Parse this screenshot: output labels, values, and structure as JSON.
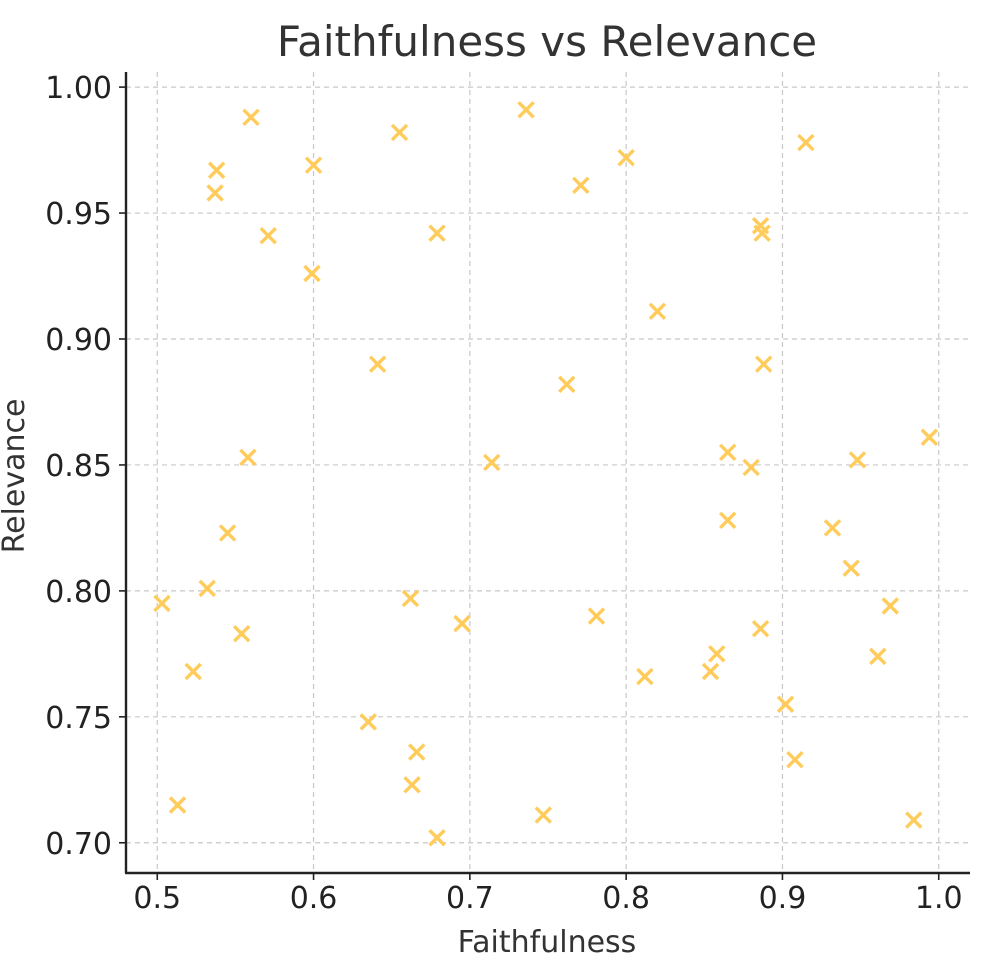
{
  "chart_data": {
    "type": "scatter",
    "title": "Faithfulness vs Relevance",
    "xlabel": "Faithfulness",
    "ylabel": "Relevance",
    "xlim": [
      0.48,
      1.02
    ],
    "ylim": [
      0.688,
      1.006
    ],
    "xticks": [
      0.5,
      0.6,
      0.7,
      0.8,
      0.9,
      1.0
    ],
    "xtick_labels": [
      "0.5",
      "0.6",
      "0.7",
      "0.8",
      "0.9",
      "1.0"
    ],
    "yticks": [
      0.7,
      0.75,
      0.8,
      0.85,
      0.9,
      0.95,
      1.0
    ],
    "ytick_labels": [
      "0.70",
      "0.75",
      "0.80",
      "0.85",
      "0.90",
      "0.95",
      "1.00"
    ],
    "grid": true,
    "marker": "x",
    "color": "#ffcc5c",
    "series": [
      {
        "points": [
          {
            "x": 0.56,
            "y": 0.988
          },
          {
            "x": 0.538,
            "y": 0.967
          },
          {
            "x": 0.537,
            "y": 0.958
          },
          {
            "x": 0.6,
            "y": 0.969
          },
          {
            "x": 0.571,
            "y": 0.941
          },
          {
            "x": 0.599,
            "y": 0.926
          },
          {
            "x": 0.655,
            "y": 0.982
          },
          {
            "x": 0.679,
            "y": 0.942
          },
          {
            "x": 0.736,
            "y": 0.991
          },
          {
            "x": 0.8,
            "y": 0.972
          },
          {
            "x": 0.771,
            "y": 0.961
          },
          {
            "x": 0.915,
            "y": 0.978
          },
          {
            "x": 0.886,
            "y": 0.945
          },
          {
            "x": 0.887,
            "y": 0.942
          },
          {
            "x": 0.82,
            "y": 0.911
          },
          {
            "x": 0.641,
            "y": 0.89
          },
          {
            "x": 0.762,
            "y": 0.882
          },
          {
            "x": 0.888,
            "y": 0.89
          },
          {
            "x": 0.558,
            "y": 0.853
          },
          {
            "x": 0.714,
            "y": 0.851
          },
          {
            "x": 0.865,
            "y": 0.855
          },
          {
            "x": 0.88,
            "y": 0.849
          },
          {
            "x": 0.948,
            "y": 0.852
          },
          {
            "x": 0.994,
            "y": 0.861
          },
          {
            "x": 0.545,
            "y": 0.823
          },
          {
            "x": 0.865,
            "y": 0.828
          },
          {
            "x": 0.932,
            "y": 0.825
          },
          {
            "x": 0.944,
            "y": 0.809
          },
          {
            "x": 0.503,
            "y": 0.795
          },
          {
            "x": 0.532,
            "y": 0.801
          },
          {
            "x": 0.554,
            "y": 0.783
          },
          {
            "x": 0.662,
            "y": 0.797
          },
          {
            "x": 0.695,
            "y": 0.787
          },
          {
            "x": 0.781,
            "y": 0.79
          },
          {
            "x": 0.886,
            "y": 0.785
          },
          {
            "x": 0.969,
            "y": 0.794
          },
          {
            "x": 0.523,
            "y": 0.768
          },
          {
            "x": 0.812,
            "y": 0.766
          },
          {
            "x": 0.854,
            "y": 0.768
          },
          {
            "x": 0.858,
            "y": 0.775
          },
          {
            "x": 0.961,
            "y": 0.774
          },
          {
            "x": 0.902,
            "y": 0.755
          },
          {
            "x": 0.635,
            "y": 0.748
          },
          {
            "x": 0.666,
            "y": 0.736
          },
          {
            "x": 0.908,
            "y": 0.733
          },
          {
            "x": 0.663,
            "y": 0.723
          },
          {
            "x": 0.513,
            "y": 0.715
          },
          {
            "x": 0.747,
            "y": 0.711
          },
          {
            "x": 0.679,
            "y": 0.702
          },
          {
            "x": 0.984,
            "y": 0.709
          }
        ]
      }
    ]
  }
}
